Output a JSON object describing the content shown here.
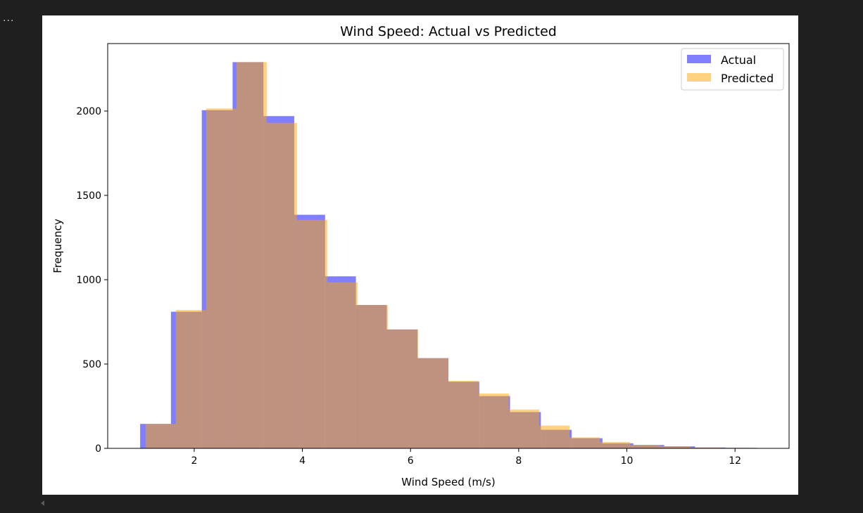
{
  "cell": {
    "ellipsis": "..."
  },
  "chart_data": {
    "type": "histogram",
    "title": "Wind Speed: Actual vs Predicted",
    "xlabel": "Wind Speed (m/s)",
    "ylabel": "Frequency",
    "xlim": [
      0.4,
      13.0
    ],
    "ylim": [
      0,
      2400
    ],
    "xticks": [
      2,
      4,
      6,
      8,
      10,
      12
    ],
    "yticks": [
      0,
      500,
      1000,
      1500,
      2000
    ],
    "legend_position": "upper-right",
    "series": [
      {
        "name": "Actual",
        "color": "#0000ff",
        "opacity": 0.5,
        "bin_edges": [
          1.0,
          1.57,
          2.14,
          2.71,
          3.28,
          3.85,
          4.42,
          4.99,
          5.56,
          6.13,
          6.7,
          7.27,
          7.84,
          8.41,
          8.98,
          9.55,
          10.12,
          10.69,
          11.26,
          11.83,
          12.4
        ],
        "counts": [
          145,
          810,
          2005,
          2290,
          1970,
          1385,
          1020,
          850,
          705,
          535,
          395,
          310,
          215,
          110,
          60,
          30,
          20,
          12,
          5,
          3
        ]
      },
      {
        "name": "Predicted",
        "color": "#ffa500",
        "opacity": 0.5,
        "bin_edges": [
          1.1,
          1.66,
          2.22,
          2.78,
          3.34,
          3.9,
          4.46,
          5.02,
          5.58,
          6.14,
          6.7,
          7.26,
          7.82,
          8.38,
          8.94,
          9.5,
          10.06,
          10.62,
          11.18,
          11.74,
          12.3
        ],
        "counts": [
          145,
          820,
          2015,
          2290,
          1930,
          1355,
          985,
          850,
          705,
          535,
          400,
          325,
          230,
          135,
          65,
          38,
          18,
          12,
          5,
          3
        ]
      }
    ]
  }
}
